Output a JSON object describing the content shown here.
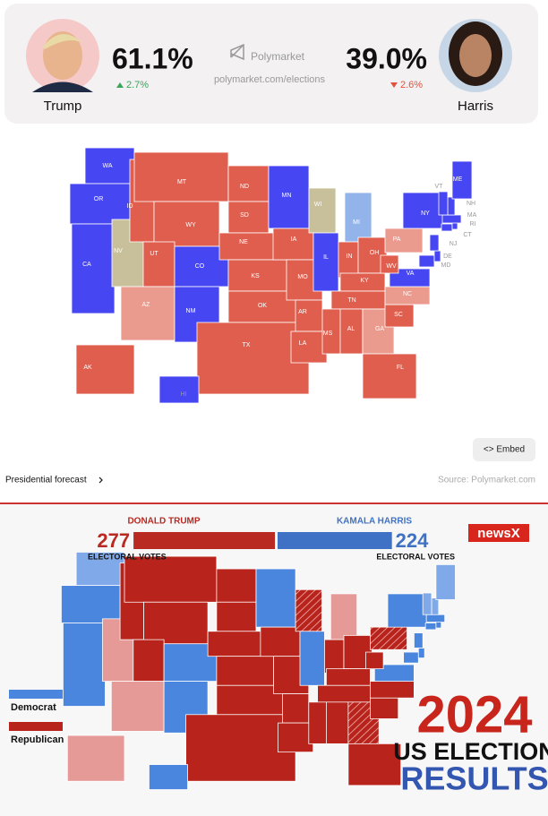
{
  "header": {
    "candidates": [
      {
        "name": "Trump",
        "odds": "61.1%",
        "change": "2.7%"
      },
      {
        "name": "Harris",
        "odds": "39.0%",
        "change": "2.6%"
      }
    ],
    "brand": "Polymarket",
    "url": "polymarket.com/elections"
  },
  "forecast_map": {
    "palette": {
      "B": "#4646f2",
      "K": "#c8c09a",
      "R": "#e05e4e",
      "LR": "#eb9a8e",
      "LB": "#92b4ea"
    },
    "states": [
      {
        "label": "WA",
        "fill": "B"
      },
      {
        "label": "OR",
        "fill": "B"
      },
      {
        "label": "CA",
        "fill": "B"
      },
      {
        "label": "NV",
        "fill": "K"
      },
      {
        "label": "ID",
        "fill": "R"
      },
      {
        "label": "MT",
        "fill": "R"
      },
      {
        "label": "WY",
        "fill": "R"
      },
      {
        "label": "UT",
        "fill": "R"
      },
      {
        "label": "CO",
        "fill": "B"
      },
      {
        "label": "AZ",
        "fill": "LR"
      },
      {
        "label": "NM",
        "fill": "B"
      },
      {
        "label": "ND",
        "fill": "R"
      },
      {
        "label": "SD",
        "fill": "R"
      },
      {
        "label": "NE",
        "fill": "R"
      },
      {
        "label": "KS",
        "fill": "R"
      },
      {
        "label": "OK",
        "fill": "R"
      },
      {
        "label": "TX",
        "fill": "R"
      },
      {
        "label": "MN",
        "fill": "B"
      },
      {
        "label": "IA",
        "fill": "R"
      },
      {
        "label": "MO",
        "fill": "R"
      },
      {
        "label": "AR",
        "fill": "R"
      },
      {
        "label": "LA",
        "fill": "R"
      },
      {
        "label": "WI",
        "fill": "K"
      },
      {
        "label": "IL",
        "fill": "B"
      },
      {
        "label": "MI",
        "fill": "LB"
      },
      {
        "label": "IN",
        "fill": "R"
      },
      {
        "label": "OH",
        "fill": "R"
      },
      {
        "label": "KY",
        "fill": "R"
      },
      {
        "label": "TN",
        "fill": "R"
      },
      {
        "label": "MS",
        "fill": "R"
      },
      {
        "label": "AL",
        "fill": "R"
      },
      {
        "label": "GA",
        "fill": "LR"
      },
      {
        "label": "FL",
        "fill": "R"
      },
      {
        "label": "SC",
        "fill": "R"
      },
      {
        "label": "NC",
        "fill": "LR"
      },
      {
        "label": "VA",
        "fill": "B"
      },
      {
        "label": "WV",
        "fill": "R"
      },
      {
        "label": "PA",
        "fill": "LR"
      },
      {
        "label": "NY",
        "fill": "B"
      },
      {
        "label": "MD",
        "fill": "B"
      },
      {
        "label": "DE",
        "fill": "B"
      },
      {
        "label": "NJ",
        "fill": "B"
      },
      {
        "label": "CT",
        "fill": "B"
      },
      {
        "label": "RI",
        "fill": "B"
      },
      {
        "label": "MA",
        "fill": "B"
      },
      {
        "label": "NH",
        "fill": "B"
      },
      {
        "label": "VT",
        "fill": "B"
      },
      {
        "label": "ME",
        "fill": "B"
      },
      {
        "label": "AK",
        "fill": "R"
      },
      {
        "label": "HI",
        "fill": "B"
      }
    ],
    "embed": "<> Embed",
    "link": "Presidential forecast",
    "source": "Source: Polymarket.com"
  },
  "results_map": {
    "candidates": [
      {
        "name": "DONALD TRUMP",
        "votes": 277,
        "votes_label": "ELECTORAL VOTES",
        "color": "#b82a22"
      },
      {
        "name": "KAMALA HARRIS",
        "votes": 224,
        "votes_label": "ELECTORAL VOTES",
        "color": "#3f72c4"
      }
    ],
    "logo": "newsX",
    "palette": {
      "D": "#4a86de",
      "LD": "#7fa9e8",
      "R": "#b8241c",
      "LR": "#e59a98",
      "H": "url(#hatch)"
    },
    "fills": [
      "LD",
      "D",
      "D",
      "LR",
      "R",
      "R",
      "R",
      "R",
      "D",
      "LR",
      "D",
      "R",
      "R",
      "R",
      "R",
      "R",
      "R",
      "D",
      "R",
      "R",
      "R",
      "R",
      "H",
      "D",
      "LR",
      "R",
      "R",
      "R",
      "R",
      "R",
      "R",
      "H",
      "R",
      "R",
      "R",
      "D",
      "R",
      "H",
      "D",
      "D",
      "D",
      "D",
      "D",
      "D",
      "D",
      "LD",
      "LD",
      "LD",
      "LR",
      "D"
    ],
    "legend": [
      {
        "label": "Democrat",
        "fill": "D"
      },
      {
        "label": "Republican",
        "fill": "R"
      }
    ],
    "headline": [
      "2024",
      "US ELECTION",
      "RESULTS"
    ]
  }
}
